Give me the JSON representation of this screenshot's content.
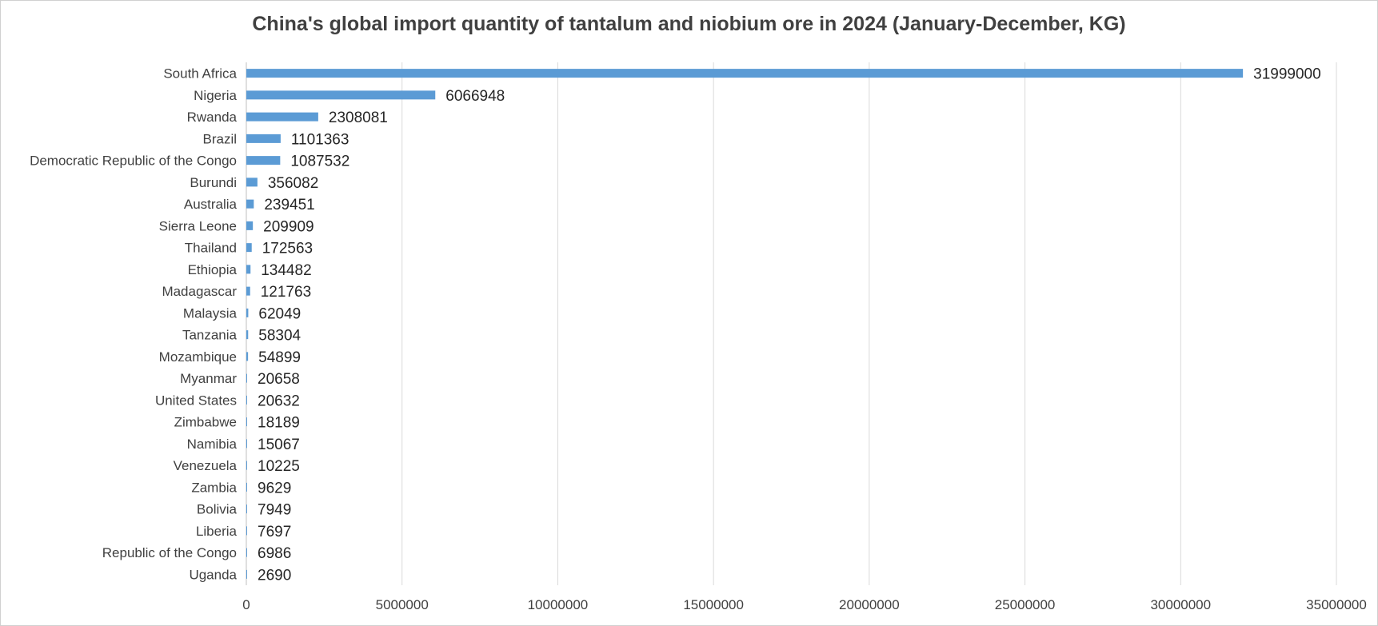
{
  "chart_data": {
    "type": "bar",
    "orientation": "horizontal",
    "title": "China's global import quantity of tantalum and niobium ore in 2024 (January-December, KG)",
    "xlabel": "",
    "ylabel": "",
    "xlim": [
      0,
      35000000
    ],
    "x_ticks": [
      "0",
      "5000000",
      "10000000",
      "15000000",
      "20000000",
      "25000000",
      "30000000",
      "35000000"
    ],
    "grid": "vertical",
    "bar_color": "#5b9bd5",
    "categories": [
      "South Africa",
      "Nigeria",
      "Rwanda",
      "Brazil",
      "Democratic Republic of the Congo",
      "Burundi",
      "Australia",
      "Sierra Leone",
      "Thailand",
      "Ethiopia",
      "Madagascar",
      "Malaysia",
      "Tanzania",
      "Mozambique",
      "Myanmar",
      "United States",
      "Zimbabwe",
      "Namibia",
      "Venezuela",
      "Zambia",
      "Bolivia",
      "Liberia",
      "Republic of the Congo",
      "Uganda"
    ],
    "values": [
      31999000,
      6066948,
      2308081,
      1101363,
      1087532,
      356082,
      239451,
      209909,
      172563,
      134482,
      121763,
      62049,
      58304,
      54899,
      20658,
      20632,
      18189,
      15067,
      10225,
      9629,
      7949,
      7697,
      6986,
      2690
    ],
    "data_labels": [
      "31999000",
      "6066948",
      "2308081",
      "1101363",
      "1087532",
      "356082",
      "239451",
      "209909",
      "172563",
      "134482",
      "121763",
      "62049",
      "58304",
      "54899",
      "20658",
      "20632",
      "18189",
      "15067",
      "10225",
      "9629",
      "7949",
      "7697",
      "6986",
      "2690"
    ]
  }
}
